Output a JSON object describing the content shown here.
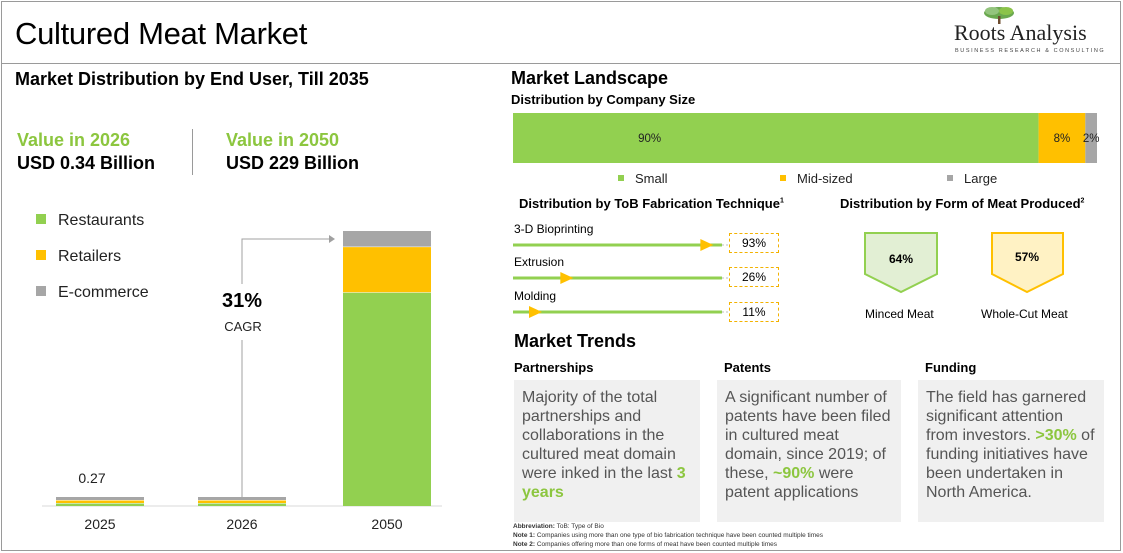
{
  "header": {
    "title": "Cultured Meat Market",
    "logo_name": "Roots Analysis",
    "logo_tagline": "BUSINESS RESEARCH & CONSULTING"
  },
  "left_panel": {
    "title": "Market Distribution by End User, Till 2035",
    "value_2026_label": "Value in 2026",
    "value_2026": "USD 0.34 Billion",
    "value_2050_label": "Value in 2050",
    "value_2050": "USD 229 Billion",
    "cagr_value": "31%",
    "cagr_label": "CAGR",
    "annotation_2025": "0.27",
    "legend": [
      {
        "name": "Restaurants",
        "color": "#92d050"
      },
      {
        "name": "Retailers",
        "color": "#ffc000"
      },
      {
        "name": "E-commerce",
        "color": "#a6a6a6"
      }
    ]
  },
  "chart_data": [
    {
      "type": "bar",
      "stacked": true,
      "categories": [
        "2025",
        "2026",
        "2050"
      ],
      "series": [
        {
          "name": "Restaurants",
          "color": "#92d050",
          "values": [
            0.15,
            0.19,
            178.0
          ]
        },
        {
          "name": "Retailers",
          "color": "#ffc000",
          "values": [
            0.09,
            0.11,
            38.0
          ]
        },
        {
          "name": "E-commerce",
          "color": "#a6a6a6",
          "values": [
            0.03,
            0.04,
            13.0
          ]
        }
      ],
      "data_labels": [
        {
          "category": "2025",
          "text": "0.27"
        }
      ],
      "ylim": [
        0,
        229
      ],
      "grid": false,
      "legend": "left"
    },
    {
      "type": "bar",
      "stacked": true,
      "orientation": "horizontal",
      "title": "Distribution by Company Size",
      "series": [
        {
          "name": "Small",
          "color": "#92d050",
          "value": 90,
          "label": "90%"
        },
        {
          "name": "Mid-sized",
          "color": "#ffc000",
          "value": 8,
          "label": "8%"
        },
        {
          "name": "Large",
          "color": "#a6a6a6",
          "value": 2,
          "label": "2%"
        }
      ],
      "xlim": [
        0,
        100
      ],
      "legend": "bottom"
    }
  ],
  "landscape": {
    "title": "Market Landscape",
    "company_size_title": "Distribution by Company Size",
    "fabrication_title": "Distribution by ToB Fabrication Technique",
    "fabrication_sup": "1",
    "fabrication": [
      {
        "name": "3-D Bioprinting",
        "value": 93,
        "label": "93%"
      },
      {
        "name": "Extrusion",
        "value": 26,
        "label": "26%"
      },
      {
        "name": "Molding",
        "value": 11,
        "label": "11%"
      }
    ],
    "form_title": "Distribution by Form of Meat Produced",
    "form_sup": "2",
    "forms": [
      {
        "name": "Minced Meat",
        "value": 64,
        "label": "64%",
        "color": "#92d050",
        "fill": "#e2efd4"
      },
      {
        "name": "Whole-Cut Meat",
        "value": 57,
        "label": "57%",
        "color": "#ffc000",
        "fill": "#fff2c4"
      }
    ]
  },
  "trends": {
    "title": "Market Trends",
    "partnerships": {
      "heading": "Partnerships",
      "text": "Majority of the total partnerships and collaborations in the cultured meat domain were inked in the last ",
      "highlight": "3 years"
    },
    "patents": {
      "heading": "Patents",
      "text_a": "A significant number of patents have been filed in cultured meat domain, since 2019; of these, ",
      "highlight": "~90%",
      "text_b": " were patent applications"
    },
    "funding": {
      "heading": "Funding",
      "text_a": "The field has garnered significant attention from investors. ",
      "highlight": ">30%",
      "text_b": " of funding initiatives have been undertaken in North America."
    }
  },
  "notes": {
    "abbr_label": "Abbreviation:",
    "abbr_text": " ToB: Type of Bio",
    "note1_label": "Note 1:",
    "note1_text": " Companies using more than one type of bio fabrication technique have been counted multiple times",
    "note2_label": "Note 2:",
    "note2_text": " Companies offering more than one forms of meat have been counted multiple times"
  }
}
